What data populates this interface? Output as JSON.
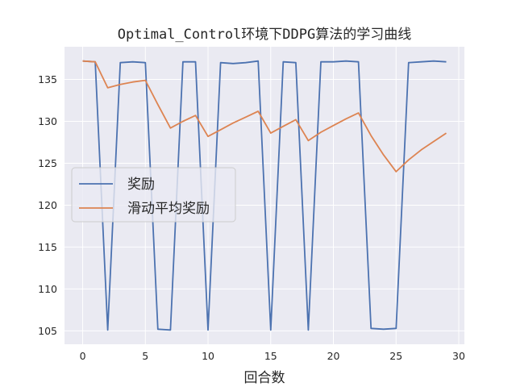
{
  "chart_data": {
    "type": "line",
    "title": "Optimal_Control环境下DDPG算法的学习曲线",
    "xlabel": "回合数",
    "ylabel": "",
    "xlim": [
      -1.45,
      30.45
    ],
    "ylim": [
      103.4,
      138.9
    ],
    "xticks": [
      0,
      5,
      10,
      15,
      20,
      25,
      30
    ],
    "yticks": [
      105,
      110,
      115,
      120,
      125,
      130,
      135
    ],
    "grid": true,
    "legend_position": "center-left",
    "background": "#eaeaf2",
    "x": [
      0,
      1,
      2,
      3,
      4,
      5,
      6,
      7,
      8,
      9,
      10,
      11,
      12,
      13,
      14,
      15,
      16,
      17,
      18,
      19,
      20,
      21,
      22,
      23,
      24,
      25,
      26,
      27,
      28,
      29
    ],
    "series": [
      {
        "name": "奖励",
        "color": "#4c72b0",
        "values": [
          137.2,
          137.1,
          105.1,
          137.0,
          137.1,
          137.0,
          105.2,
          105.1,
          137.1,
          137.1,
          105.1,
          137.0,
          136.9,
          137.0,
          137.2,
          105.1,
          137.1,
          137.0,
          105.1,
          137.1,
          137.1,
          137.2,
          137.1,
          105.3,
          105.2,
          105.3,
          137.0,
          137.1,
          137.2,
          137.1
        ]
      },
      {
        "name": "滑动平均奖励",
        "color": "#dd8452",
        "values": [
          137.2,
          137.1,
          134.0,
          134.4,
          134.7,
          134.9,
          132.0,
          129.2,
          130.0,
          130.7,
          128.2,
          129.0,
          129.8,
          130.5,
          131.2,
          128.6,
          129.4,
          130.2,
          127.7,
          128.7,
          129.5,
          130.3,
          131.0,
          128.3,
          126.0,
          124.0,
          125.4,
          126.6,
          127.6,
          128.6
        ]
      }
    ]
  }
}
